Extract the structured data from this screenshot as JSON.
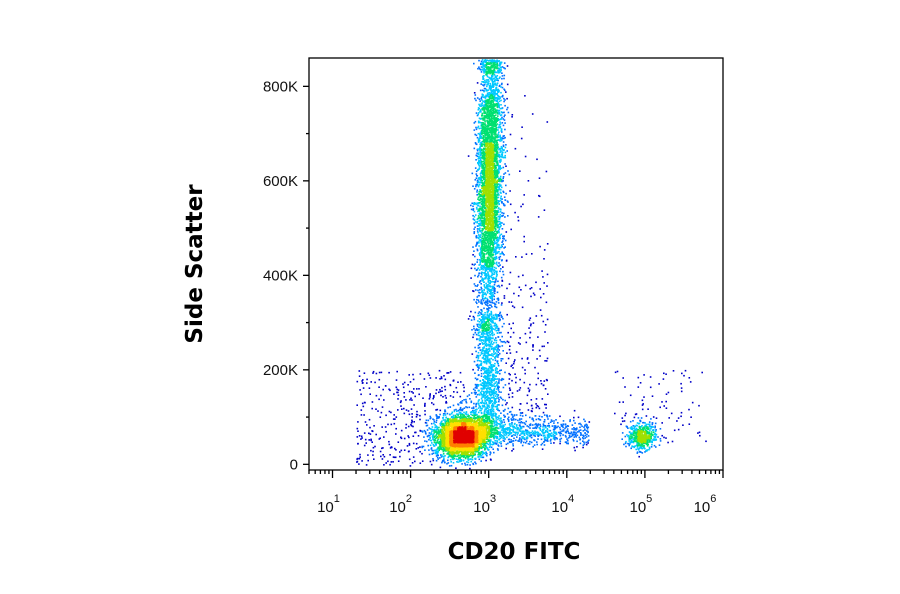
{
  "chart_data": {
    "type": "scatter",
    "subtype": "density-dot-plot",
    "xlabel": "CD20 FITC",
    "ylabel": "Side Scatter",
    "x_scale": "log",
    "xlim": [
      5,
      1000000
    ],
    "ylim": [
      -12000,
      860000
    ],
    "x_ticks": [
      {
        "value": 10,
        "base": "10",
        "exp": "1"
      },
      {
        "value": 100,
        "base": "10",
        "exp": "2"
      },
      {
        "value": 1000,
        "base": "10",
        "exp": "3"
      },
      {
        "value": 10000,
        "base": "10",
        "exp": "4"
      },
      {
        "value": 100000,
        "base": "10",
        "exp": "5"
      },
      {
        "value": 1000000,
        "base": "10",
        "exp": "6"
      }
    ],
    "y_ticks": [
      {
        "value": 0,
        "label": "0"
      },
      {
        "value": 200000,
        "label": "200K"
      },
      {
        "value": 400000,
        "label": "400K"
      },
      {
        "value": 600000,
        "label": "600K"
      },
      {
        "value": 800000,
        "label": "800K"
      }
    ],
    "populations": [
      {
        "x_center": 450,
        "y_center": 60000,
        "x_log_sd": 0.17,
        "y_sd": 22000,
        "density": "highest"
      },
      {
        "x_center": 1000,
        "y_center": 600000,
        "x_log_sd": 0.08,
        "y_sd": 140000,
        "density": "high",
        "y_range": [
          120000,
          860000
        ]
      },
      {
        "x_center": 90000,
        "y_center": 60000,
        "x_log_sd": 0.09,
        "y_sd": 14000,
        "density": "medium"
      }
    ],
    "density_colors": [
      "#0000c8",
      "#0070ff",
      "#00c8ff",
      "#00e070",
      "#a0e000",
      "#ffe000",
      "#ff8000",
      "#e00000"
    ],
    "grid": false,
    "legend": "none"
  }
}
